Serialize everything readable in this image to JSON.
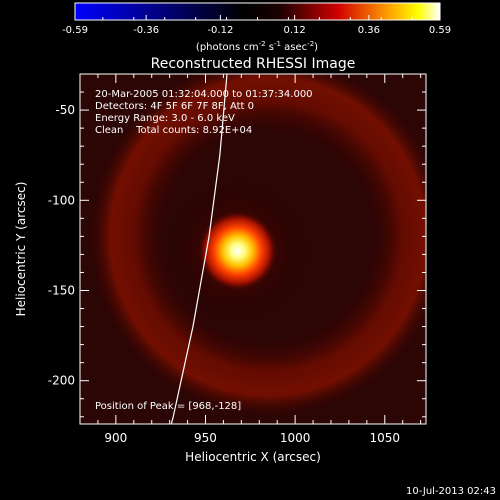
{
  "chart_data": {
    "type": "heatmap",
    "title": "Reconstructed RHESSI Image",
    "xlabel": "Heliocentric X (arcsec)",
    "ylabel": "Heliocentric Y (arcsec)",
    "xlim": [
      880,
      1073
    ],
    "ylim": [
      -224,
      -30
    ],
    "x_ticks": [
      900,
      950,
      1000,
      1050
    ],
    "y_ticks": [
      -50,
      -100,
      -150,
      -200
    ],
    "colorbar": {
      "min": -0.59,
      "max": 0.59,
      "ticks": [
        "-0.59",
        "-0.36",
        "-0.12",
        "0.12",
        "0.36",
        "0.59"
      ],
      "tick_values": [
        -0.59,
        -0.36,
        -0.12,
        0.12,
        0.36,
        0.59
      ],
      "unit_text": "photons cm-2 s-1 asec-2",
      "colormap": [
        "#0000ff",
        "#000000",
        "#ff0000",
        "#ffff00",
        "#ffffff"
      ]
    },
    "annotations": [
      "20-Mar-2005 01:32:04.000 to 01:37:34.000",
      "Detectors: 4F 5F 6F 7F 8F, Att 0",
      "Energy Range: 3.0 - 6.0 keV",
      "Clean    Total counts: 8.92E+04"
    ],
    "peak_label": "Position of Peak = [968,-128]",
    "peak": {
      "x": 968,
      "y": -128,
      "value": 0.59
    },
    "ring": {
      "center_x": 985,
      "center_y": -120,
      "radius": 80,
      "value": 0.2
    },
    "background_value": 0.12,
    "limb_curve": [
      [
        920,
        -265
      ],
      [
        932,
        -220
      ],
      [
        943,
        -170
      ],
      [
        952,
        -120
      ],
      [
        958,
        -75
      ],
      [
        962,
        -30
      ]
    ]
  },
  "footer": {
    "timestamp": "10-Jul-2013 02:43"
  }
}
